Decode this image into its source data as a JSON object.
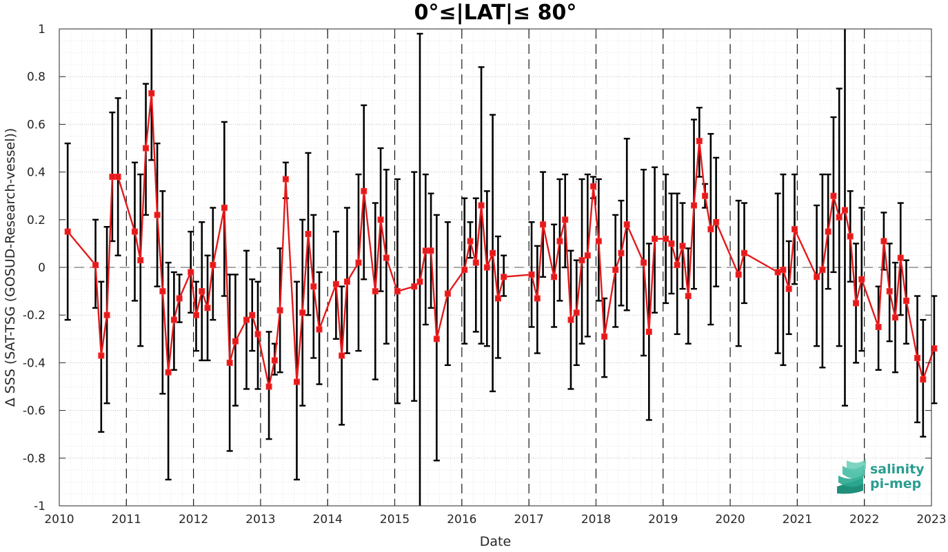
{
  "chart_data": {
    "type": "line",
    "title": "0°≤|LAT|≤ 80°",
    "xlabel": "Date",
    "ylabel": "Δ SSS (SAT-TSG (GOSUD-Research-vessel))",
    "xlim": [
      2010,
      2023
    ],
    "ylim": [
      -1,
      1
    ],
    "x_tick_labels": [
      "2010",
      "2011",
      "2012",
      "2013",
      "2014",
      "2015",
      "2016",
      "2017",
      "2018",
      "2019",
      "2020",
      "2021",
      "2022",
      "2023"
    ],
    "y_tick_labels": [
      "-1",
      "-0.8",
      "-0.6",
      "-0.4",
      "-0.2",
      "0",
      "0.2",
      "0.4",
      "0.6",
      "0.8",
      "1"
    ],
    "grid": true,
    "year_dividers": "dashed vertical lines at each year",
    "zero_line": "dashed horizontal line at 0",
    "series": [
      {
        "marker": "square",
        "color": "#e31a1c",
        "errorbar_color": "#000000",
        "points": [
          {
            "x": 2010.125,
            "y": 0.15,
            "lo": -0.22,
            "hi": 0.52
          },
          {
            "x": 2010.54,
            "y": 0.01,
            "lo": -0.17,
            "hi": 0.2
          },
          {
            "x": 2010.625,
            "y": -0.37,
            "lo": -0.69,
            "hi": -0.06
          },
          {
            "x": 2010.71,
            "y": -0.2,
            "lo": -0.57,
            "hi": 0.17
          },
          {
            "x": 2010.79,
            "y": 0.38,
            "lo": 0.11,
            "hi": 0.65
          },
          {
            "x": 2010.875,
            "y": 0.38,
            "lo": 0.05,
            "hi": 0.71
          },
          {
            "x": 2011.125,
            "y": 0.15,
            "lo": -0.14,
            "hi": 0.44
          },
          {
            "x": 2011.21,
            "y": 0.03,
            "lo": -0.33,
            "hi": 0.39
          },
          {
            "x": 2011.29,
            "y": 0.5,
            "lo": 0.22,
            "hi": 0.77
          },
          {
            "x": 2011.375,
            "y": 0.73,
            "lo": 0.45,
            "hi": 1.0
          },
          {
            "x": 2011.46,
            "y": 0.22,
            "lo": -0.08,
            "hi": 0.52
          },
          {
            "x": 2011.54,
            "y": -0.1,
            "lo": -0.53,
            "hi": 0.32
          },
          {
            "x": 2011.625,
            "y": -0.44,
            "lo": -0.89,
            "hi": 0.02
          },
          {
            "x": 2011.71,
            "y": -0.22,
            "lo": -0.43,
            "hi": -0.02
          },
          {
            "x": 2011.79,
            "y": -0.13,
            "lo": -0.23,
            "hi": -0.03
          },
          {
            "x": 2011.96,
            "y": -0.02,
            "lo": -0.19,
            "hi": 0.15
          },
          {
            "x": 2012.04,
            "y": -0.2,
            "lo": -0.35,
            "hi": -0.06
          },
          {
            "x": 2012.125,
            "y": -0.1,
            "lo": -0.39,
            "hi": 0.19
          },
          {
            "x": 2012.21,
            "y": -0.17,
            "lo": -0.39,
            "hi": 0.05
          },
          {
            "x": 2012.29,
            "y": 0.01,
            "lo": -0.22,
            "hi": 0.25
          },
          {
            "x": 2012.46,
            "y": 0.25,
            "lo": -0.12,
            "hi": 0.61
          },
          {
            "x": 2012.54,
            "y": -0.4,
            "lo": -0.77,
            "hi": -0.03
          },
          {
            "x": 2012.625,
            "y": -0.31,
            "lo": -0.58,
            "hi": -0.03
          },
          {
            "x": 2012.79,
            "y": -0.22,
            "lo": -0.51,
            "hi": 0.07
          },
          {
            "x": 2012.875,
            "y": -0.2,
            "lo": -0.35,
            "hi": -0.05
          },
          {
            "x": 2012.96,
            "y": -0.28,
            "lo": -0.51,
            "hi": -0.06
          },
          {
            "x": 2013.125,
            "y": -0.5,
            "lo": -0.72,
            "hi": -0.27
          },
          {
            "x": 2013.21,
            "y": -0.39,
            "lo": -0.45,
            "hi": -0.32
          },
          {
            "x": 2013.29,
            "y": -0.18,
            "lo": -0.44,
            "hi": 0.08
          },
          {
            "x": 2013.375,
            "y": 0.37,
            "lo": 0.29,
            "hi": 0.44
          },
          {
            "x": 2013.54,
            "y": -0.48,
            "lo": -0.89,
            "hi": -0.06
          },
          {
            "x": 2013.625,
            "y": -0.19,
            "lo": -0.58,
            "hi": 0.2
          },
          {
            "x": 2013.71,
            "y": 0.14,
            "lo": -0.2,
            "hi": 0.48
          },
          {
            "x": 2013.79,
            "y": -0.08,
            "lo": -0.38,
            "hi": 0.22
          },
          {
            "x": 2013.875,
            "y": -0.26,
            "lo": -0.49,
            "hi": -0.02
          },
          {
            "x": 2014.125,
            "y": -0.07,
            "lo": -0.3,
            "hi": 0.15
          },
          {
            "x": 2014.21,
            "y": -0.37,
            "lo": -0.66,
            "hi": -0.08
          },
          {
            "x": 2014.29,
            "y": -0.06,
            "lo": -0.36,
            "hi": 0.25
          },
          {
            "x": 2014.46,
            "y": 0.02,
            "lo": -0.35,
            "hi": 0.39
          },
          {
            "x": 2014.54,
            "y": 0.32,
            "lo": -0.05,
            "hi": 0.68
          },
          {
            "x": 2014.71,
            "y": -0.1,
            "lo": -0.47,
            "hi": 0.27
          },
          {
            "x": 2014.79,
            "y": 0.2,
            "lo": -0.1,
            "hi": 0.5
          },
          {
            "x": 2014.875,
            "y": 0.04,
            "lo": -0.32,
            "hi": 0.41
          },
          {
            "x": 2015.04,
            "y": -0.1,
            "lo": -0.57,
            "hi": 0.37
          },
          {
            "x": 2015.29,
            "y": -0.08,
            "lo": -0.56,
            "hi": 0.4
          },
          {
            "x": 2015.375,
            "y": -0.06,
            "lo": -1.0,
            "hi": 0.98
          },
          {
            "x": 2015.46,
            "y": 0.07,
            "lo": -0.24,
            "hi": 0.39
          },
          {
            "x": 2015.54,
            "y": 0.07,
            "lo": -0.17,
            "hi": 0.31
          },
          {
            "x": 2015.625,
            "y": -0.3,
            "lo": -0.81,
            "hi": 0.22
          },
          {
            "x": 2015.79,
            "y": -0.11,
            "lo": -0.41,
            "hi": 0.19
          },
          {
            "x": 2016.04,
            "y": -0.01,
            "lo": -0.32,
            "hi": 0.29
          },
          {
            "x": 2016.125,
            "y": 0.11,
            "lo": 0.04,
            "hi": 0.19
          },
          {
            "x": 2016.21,
            "y": 0.02,
            "lo": -0.27,
            "hi": 0.29
          },
          {
            "x": 2016.29,
            "y": 0.26,
            "lo": -0.32,
            "hi": 0.84
          },
          {
            "x": 2016.375,
            "y": 0.0,
            "lo": -0.33,
            "hi": 0.32
          },
          {
            "x": 2016.46,
            "y": 0.06,
            "lo": -0.52,
            "hi": 0.64
          },
          {
            "x": 2016.54,
            "y": -0.13,
            "lo": -0.38,
            "hi": 0.13
          },
          {
            "x": 2016.625,
            "y": -0.04,
            "lo": -0.12,
            "hi": 0.05
          },
          {
            "x": 2017.04,
            "y": -0.03,
            "lo": -0.25,
            "hi": 0.19
          },
          {
            "x": 2017.125,
            "y": -0.13,
            "lo": -0.36,
            "hi": 0.09
          },
          {
            "x": 2017.21,
            "y": 0.18,
            "lo": -0.04,
            "hi": 0.4
          },
          {
            "x": 2017.375,
            "y": -0.04,
            "lo": -0.25,
            "hi": 0.18
          },
          {
            "x": 2017.46,
            "y": 0.11,
            "lo": -0.14,
            "hi": 0.37
          },
          {
            "x": 2017.54,
            "y": 0.2,
            "lo": 0.0,
            "hi": 0.39
          },
          {
            "x": 2017.625,
            "y": -0.22,
            "lo": -0.51,
            "hi": 0.07
          },
          {
            "x": 2017.71,
            "y": -0.19,
            "lo": -0.41,
            "hi": 0.03
          },
          {
            "x": 2017.79,
            "y": 0.03,
            "lo": -0.32,
            "hi": 0.37
          },
          {
            "x": 2017.875,
            "y": 0.05,
            "lo": -0.29,
            "hi": 0.39
          },
          {
            "x": 2017.96,
            "y": 0.34,
            "lo": 0.29,
            "hi": 0.38
          },
          {
            "x": 2018.04,
            "y": 0.11,
            "lo": -0.14,
            "hi": 0.37
          },
          {
            "x": 2018.125,
            "y": -0.29,
            "lo": -0.46,
            "hi": -0.13
          },
          {
            "x": 2018.29,
            "y": -0.01,
            "lo": -0.25,
            "hi": 0.22
          },
          {
            "x": 2018.375,
            "y": 0.06,
            "lo": -0.16,
            "hi": 0.28
          },
          {
            "x": 2018.46,
            "y": 0.18,
            "lo": -0.18,
            "hi": 0.54
          },
          {
            "x": 2018.71,
            "y": 0.02,
            "lo": -0.37,
            "hi": 0.41
          },
          {
            "x": 2018.79,
            "y": -0.27,
            "lo": -0.64,
            "hi": 0.1
          },
          {
            "x": 2018.875,
            "y": 0.12,
            "lo": -0.19,
            "hi": 0.42
          },
          {
            "x": 2019.04,
            "y": 0.12,
            "lo": -0.15,
            "hi": 0.39
          },
          {
            "x": 2019.125,
            "y": 0.1,
            "lo": -0.11,
            "hi": 0.31
          },
          {
            "x": 2019.21,
            "y": 0.01,
            "lo": -0.28,
            "hi": 0.31
          },
          {
            "x": 2019.29,
            "y": 0.09,
            "lo": -0.09,
            "hi": 0.27
          },
          {
            "x": 2019.375,
            "y": -0.12,
            "lo": -0.32,
            "hi": 0.08
          },
          {
            "x": 2019.46,
            "y": 0.26,
            "lo": -0.09,
            "hi": 0.62
          },
          {
            "x": 2019.54,
            "y": 0.53,
            "lo": 0.38,
            "hi": 0.67
          },
          {
            "x": 2019.625,
            "y": 0.3,
            "lo": 0.25,
            "hi": 0.35
          },
          {
            "x": 2019.71,
            "y": 0.16,
            "lo": -0.24,
            "hi": 0.56
          },
          {
            "x": 2019.79,
            "y": 0.19,
            "lo": -0.08,
            "hi": 0.46
          },
          {
            "x": 2020.125,
            "y": -0.03,
            "lo": -0.33,
            "hi": 0.28
          },
          {
            "x": 2020.21,
            "y": 0.06,
            "lo": -0.15,
            "hi": 0.27
          },
          {
            "x": 2020.71,
            "y": -0.02,
            "lo": -0.36,
            "hi": 0.31
          },
          {
            "x": 2020.79,
            "y": -0.01,
            "lo": -0.41,
            "hi": 0.39
          },
          {
            "x": 2020.875,
            "y": -0.09,
            "lo": -0.28,
            "hi": 0.11
          },
          {
            "x": 2020.96,
            "y": 0.16,
            "lo": -0.07,
            "hi": 0.39
          },
          {
            "x": 2021.29,
            "y": -0.04,
            "lo": -0.33,
            "hi": 0.26
          },
          {
            "x": 2021.375,
            "y": -0.01,
            "lo": -0.42,
            "hi": 0.39
          },
          {
            "x": 2021.46,
            "y": 0.15,
            "lo": -0.09,
            "hi": 0.39
          },
          {
            "x": 2021.54,
            "y": 0.3,
            "lo": -0.02,
            "hi": 0.63
          },
          {
            "x": 2021.625,
            "y": 0.21,
            "lo": -0.33,
            "hi": 0.75
          },
          {
            "x": 2021.71,
            "y": 0.24,
            "lo": -0.58,
            "hi": 1.0
          },
          {
            "x": 2021.79,
            "y": 0.13,
            "lo": -0.06,
            "hi": 0.32
          },
          {
            "x": 2021.875,
            "y": -0.15,
            "lo": -0.4,
            "hi": 0.1
          },
          {
            "x": 2021.96,
            "y": -0.05,
            "lo": -0.35,
            "hi": 0.25
          },
          {
            "x": 2022.21,
            "y": -0.25,
            "lo": -0.43,
            "hi": -0.08
          },
          {
            "x": 2022.29,
            "y": 0.11,
            "lo": -0.01,
            "hi": 0.23
          },
          {
            "x": 2022.375,
            "y": -0.1,
            "lo": -0.31,
            "hi": 0.1
          },
          {
            "x": 2022.46,
            "y": -0.21,
            "lo": -0.44,
            "hi": 0.02
          },
          {
            "x": 2022.54,
            "y": 0.04,
            "lo": -0.2,
            "hi": 0.27
          },
          {
            "x": 2022.625,
            "y": -0.14,
            "lo": -0.32,
            "hi": 0.03
          },
          {
            "x": 2022.79,
            "y": -0.38,
            "lo": -0.65,
            "hi": -0.12
          },
          {
            "x": 2022.875,
            "y": -0.47,
            "lo": -0.71,
            "hi": -0.22
          },
          {
            "x": 2023.04,
            "y": -0.34,
            "lo": -0.57,
            "hi": -0.12
          }
        ]
      }
    ]
  },
  "logo": {
    "line1": "salinity",
    "line2": "pi-mep",
    "text_color": "#2a9d8f",
    "icon": "wave-layers-icon"
  }
}
